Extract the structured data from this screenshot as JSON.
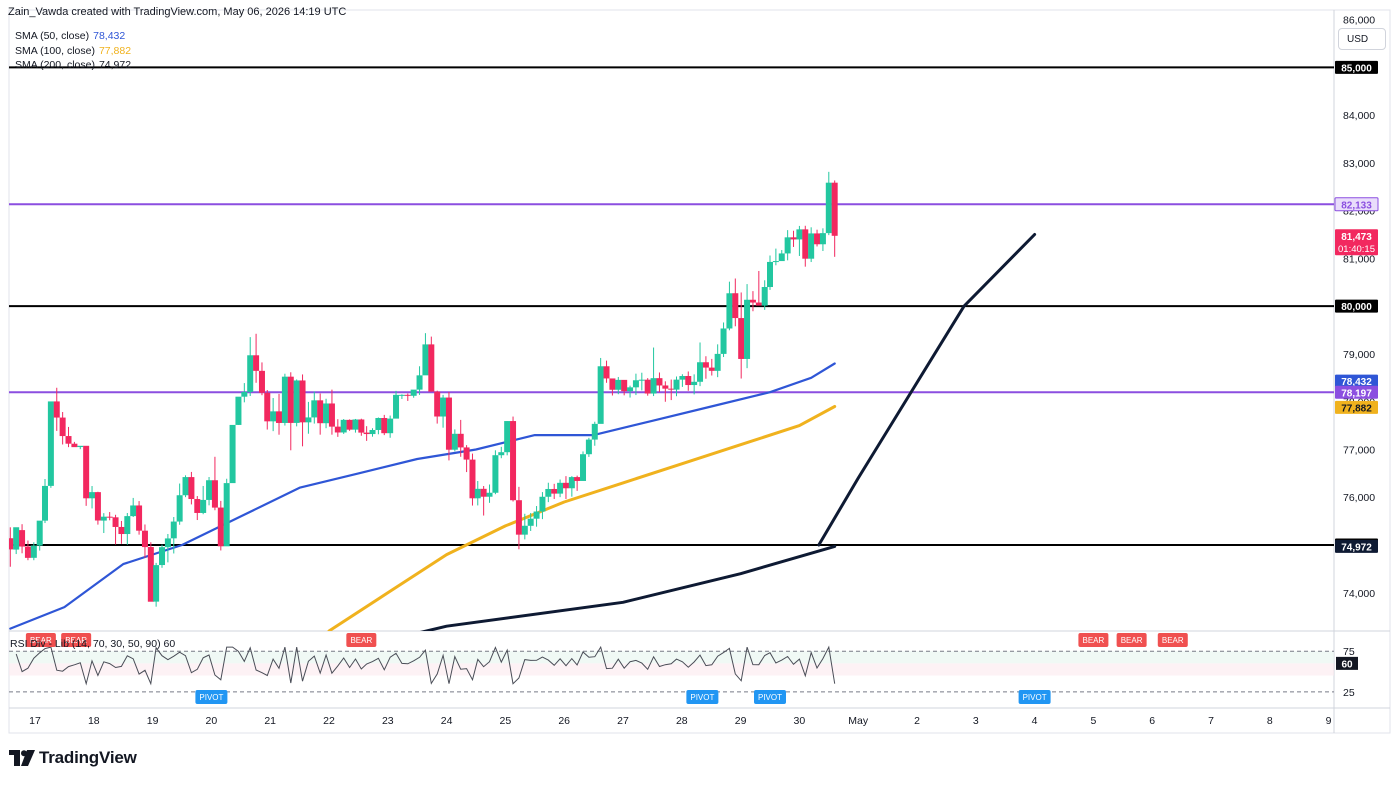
{
  "header": {
    "credit": "Zain_Vawda created with TradingView.com, May 06, 2026 14:19 UTC"
  },
  "currency": "USD",
  "sma_legend": [
    {
      "label": "SMA (50, close)",
      "value": "78,432",
      "color": "#2f56d6"
    },
    {
      "label": "SMA (100, close)",
      "value": "77,882",
      "color": "#f0b21e"
    },
    {
      "label": "SMA (200, close)",
      "value": "74,972",
      "color": "#131722"
    }
  ],
  "rsi_legend": "RSI Div - Lib (14, 70, 30, 50, 90) 60",
  "footer": {
    "brand": "TradingView"
  },
  "colors": {
    "up": "#22c7a0",
    "down": "#f2285f",
    "sma50": "#2f56d6",
    "sma100": "#f0b21e",
    "sma200": "#0e1a33",
    "purple": "#8b4fe0",
    "hline": "#000000"
  },
  "chart_data": {
    "type": "candlestick",
    "ylim": [
      73200,
      86200
    ],
    "y_ticks": [
      "74,000",
      "76,000",
      "77,000",
      "78,000",
      "79,000",
      "80,000",
      "81,000",
      "82,000",
      "83,000",
      "84,000",
      "85,000",
      "86,000"
    ],
    "x_ticks": [
      {
        "label": "17",
        "x": 0
      },
      {
        "label": "18",
        "x": 1
      },
      {
        "label": "19",
        "x": 2
      },
      {
        "label": "20",
        "x": 3
      },
      {
        "label": "21",
        "x": 4
      },
      {
        "label": "22",
        "x": 5
      },
      {
        "label": "23",
        "x": 6
      },
      {
        "label": "24",
        "x": 7
      },
      {
        "label": "25",
        "x": 8
      },
      {
        "label": "26",
        "x": 9
      },
      {
        "label": "27",
        "x": 10
      },
      {
        "label": "28",
        "x": 11
      },
      {
        "label": "29",
        "x": 12
      },
      {
        "label": "30",
        "x": 13
      },
      {
        "label": "May",
        "x": 14
      },
      {
        "label": "2",
        "x": 15
      },
      {
        "label": "3",
        "x": 16
      },
      {
        "label": "4",
        "x": 17
      },
      {
        "label": "5",
        "x": 18
      },
      {
        "label": "6",
        "x": 19
      },
      {
        "label": "7",
        "x": 20
      },
      {
        "label": "8",
        "x": 21
      },
      {
        "label": "9",
        "x": 22
      }
    ],
    "candles": [
      [
        -0.42,
        75142,
        75371,
        74545,
        74908
      ],
      [
        -0.32,
        74904,
        75328,
        74811,
        75372
      ],
      [
        -0.22,
        75312,
        75436,
        74827,
        74968
      ],
      [
        -0.12,
        74968,
        75094,
        74682,
        74731
      ],
      [
        -0.02,
        74732,
        75057,
        74682,
        74988
      ],
      [
        0.08,
        74988,
        75415,
        74884,
        75510
      ],
      [
        0.17,
        75510,
        76382,
        75460,
        76237
      ],
      [
        0.27,
        76238,
        77953,
        76197,
        78006
      ],
      [
        0.37,
        78006,
        78292,
        77389,
        77668
      ],
      [
        0.47,
        77668,
        77784,
        77105,
        77281
      ],
      [
        0.57,
        77281,
        77472,
        77049,
        77121
      ],
      [
        0.67,
        77121,
        77159,
        77065,
        77049
      ],
      [
        0.77,
        77051,
        77059,
        77006,
        77077
      ],
      [
        0.87,
        77077,
        77016,
        75820,
        75978
      ],
      [
        0.97,
        75978,
        76235,
        75766,
        76107
      ],
      [
        1.07,
        76107,
        76115,
        75427,
        75513
      ],
      [
        1.17,
        75511,
        75667,
        75251,
        75593
      ],
      [
        1.27,
        75593,
        75690,
        75518,
        75580
      ],
      [
        1.37,
        75580,
        75633,
        75012,
        75378
      ],
      [
        1.47,
        75378,
        75504,
        75025,
        75230
      ],
      [
        1.57,
        75230,
        75670,
        75006,
        75605
      ],
      [
        1.67,
        75605,
        75986,
        75586,
        75828
      ],
      [
        1.77,
        75828,
        75920,
        75217,
        75300
      ],
      [
        1.87,
        75300,
        75430,
        74734,
        74957
      ],
      [
        1.97,
        74958,
        75058,
        73838,
        73813
      ],
      [
        2.06,
        73815,
        74626,
        73709,
        74579
      ],
      [
        2.16,
        74581,
        75008,
        74523,
        74955
      ],
      [
        2.26,
        74955,
        75231,
        74637,
        75138
      ],
      [
        2.36,
        75140,
        75586,
        74823,
        75491
      ],
      [
        2.46,
        75491,
        76287,
        75424,
        76042
      ],
      [
        2.56,
        76042,
        76459,
        76002,
        76422
      ],
      [
        2.66,
        76422,
        76530,
        75850,
        75963
      ],
      [
        2.76,
        75963,
        76025,
        75523,
        75671
      ],
      [
        2.86,
        75671,
        76236,
        75645,
        75944
      ],
      [
        2.96,
        75944,
        76424,
        75831,
        76356
      ],
      [
        3.06,
        76356,
        76847,
        75728,
        75783
      ],
      [
        3.16,
        75784,
        75924,
        74886,
        74973
      ],
      [
        3.26,
        74973,
        76387,
        75080,
        76296
      ],
      [
        3.36,
        76296,
        77485,
        76304,
        77514
      ],
      [
        3.46,
        77514,
        78009,
        77515,
        78105
      ],
      [
        3.56,
        78105,
        78390,
        77987,
        78204
      ],
      [
        3.66,
        78204,
        79352,
        78119,
        78972
      ],
      [
        3.76,
        78972,
        79422,
        78396,
        78646
      ],
      [
        3.86,
        78646,
        78823,
        78136,
        78187
      ],
      [
        3.95,
        78187,
        78245,
        77417,
        77589
      ],
      [
        4.05,
        77589,
        78077,
        77384,
        77798
      ],
      [
        4.15,
        77798,
        78164,
        77309,
        77555
      ],
      [
        4.25,
        77555,
        78586,
        77501,
        78524
      ],
      [
        4.35,
        78524,
        78616,
        76983,
        77556
      ],
      [
        4.45,
        77556,
        78466,
        77484,
        78445
      ],
      [
        4.55,
        78445,
        78571,
        77066,
        77568
      ],
      [
        4.65,
        77568,
        77996,
        77330,
        77671
      ],
      [
        4.75,
        77671,
        78213,
        77542,
        78029
      ],
      [
        4.85,
        78029,
        78172,
        77310,
        77550
      ],
      [
        4.95,
        77550,
        78062,
        77445,
        77963
      ],
      [
        5.05,
        77963,
        78253,
        77310,
        77478
      ],
      [
        5.15,
        77478,
        77634,
        77264,
        77356
      ],
      [
        5.25,
        77356,
        77638,
        77325,
        77620
      ],
      [
        5.35,
        77620,
        77630,
        77391,
        77415
      ],
      [
        5.45,
        77415,
        77639,
        77353,
        77628
      ],
      [
        5.55,
        77628,
        77644,
        77287,
        77353
      ],
      [
        5.64,
        77353,
        77488,
        77180,
        77323
      ],
      [
        5.74,
        77323,
        77445,
        77268,
        77408
      ],
      [
        5.84,
        77408,
        77670,
        77318,
        77659
      ],
      [
        5.94,
        77659,
        77724,
        77301,
        77341
      ],
      [
        6.04,
        77341,
        77710,
        77245,
        77646
      ],
      [
        6.14,
        77646,
        78227,
        77661,
        78143
      ],
      [
        6.24,
        78143,
        78154,
        78057,
        78144
      ],
      [
        6.34,
        78144,
        78172,
        78016,
        78125
      ],
      [
        6.44,
        78124,
        78175,
        78083,
        78253
      ],
      [
        6.54,
        78253,
        78742,
        78143,
        78552
      ],
      [
        6.64,
        78552,
        79435,
        78567,
        79200
      ],
      [
        6.74,
        79200,
        79363,
        78210,
        78212
      ],
      [
        6.84,
        78212,
        78231,
        77542,
        77690
      ],
      [
        6.94,
        77690,
        78143,
        77456,
        78087
      ],
      [
        7.04,
        78087,
        78203,
        76771,
        76995
      ],
      [
        7.14,
        76995,
        77420,
        76962,
        77328
      ],
      [
        7.24,
        77328,
        77619,
        76847,
        77043
      ],
      [
        7.34,
        77043,
        77091,
        76527,
        76788
      ],
      [
        7.44,
        76788,
        76914,
        75826,
        75978
      ],
      [
        7.53,
        75978,
        76340,
        75829,
        76176
      ],
      [
        7.63,
        76176,
        76235,
        75617,
        76011
      ],
      [
        7.73,
        76011,
        76267,
        75883,
        76094
      ],
      [
        7.83,
        76094,
        76983,
        76064,
        76880
      ],
      [
        7.93,
        76880,
        77055,
        76817,
        76943
      ],
      [
        8.03,
        76943,
        77593,
        76878,
        77595
      ],
      [
        8.13,
        77595,
        77689,
        75911,
        75938
      ],
      [
        8.23,
        75938,
        76218,
        74911,
        75217
      ],
      [
        8.33,
        75217,
        75654,
        75118,
        75403
      ],
      [
        8.43,
        75402,
        75671,
        75294,
        75551
      ],
      [
        8.53,
        75551,
        75816,
        75384,
        75701
      ],
      [
        8.63,
        75701,
        76108,
        75542,
        76010
      ],
      [
        8.73,
        76010,
        76304,
        75898,
        76173
      ],
      [
        8.83,
        76173,
        76281,
        75964,
        76076
      ],
      [
        8.93,
        76076,
        76371,
        76002,
        76302
      ],
      [
        9.03,
        76302,
        76442,
        75964,
        76188
      ],
      [
        9.13,
        76188,
        76442,
        76012,
        76422
      ],
      [
        9.22,
        76422,
        76452,
        76133,
        76341
      ],
      [
        9.32,
        76341,
        76959,
        76349,
        76901
      ],
      [
        9.42,
        76901,
        77244,
        76844,
        77207
      ],
      [
        9.52,
        77207,
        77581,
        77078,
        77536
      ],
      [
        9.62,
        77536,
        78916,
        77568,
        78742
      ],
      [
        9.72,
        78742,
        78860,
        78396,
        78487
      ],
      [
        9.82,
        78487,
        78482,
        78130,
        78250
      ],
      [
        9.92,
        78250,
        78518,
        78157,
        78457
      ],
      [
        10.02,
        78457,
        78453,
        78134,
        78220
      ],
      [
        10.12,
        78220,
        78336,
        78087,
        78301
      ],
      [
        10.22,
        78301,
        78587,
        78139,
        78449
      ],
      [
        10.32,
        78449,
        78607,
        78236,
        78461
      ],
      [
        10.42,
        78461,
        78494,
        78126,
        78171
      ],
      [
        10.52,
        78171,
        79134,
        78118,
        78493
      ],
      [
        10.62,
        78493,
        78612,
        78202,
        78340
      ],
      [
        10.72,
        78340,
        78427,
        77999,
        78273
      ],
      [
        10.82,
        78273,
        78464,
        78034,
        78253
      ],
      [
        10.91,
        78253,
        78528,
        78115,
        78462
      ],
      [
        11.01,
        78462,
        78575,
        78310,
        78538
      ],
      [
        11.11,
        78538,
        78633,
        78229,
        78349
      ],
      [
        11.21,
        78349,
        78573,
        78153,
        78417
      ],
      [
        11.31,
        78417,
        79240,
        78326,
        78826
      ],
      [
        11.41,
        78826,
        78952,
        78481,
        78714
      ],
      [
        11.51,
        78714,
        78896,
        78548,
        78646
      ],
      [
        11.61,
        78646,
        79201,
        78514,
        79001
      ],
      [
        11.71,
        79001,
        79659,
        78935,
        79533
      ],
      [
        11.81,
        79533,
        80513,
        79495,
        80270
      ],
      [
        11.91,
        80271,
        80579,
        79579,
        79751
      ],
      [
        12.01,
        79751,
        80287,
        78485,
        78895
      ],
      [
        12.11,
        78895,
        80462,
        78702,
        80134
      ],
      [
        12.21,
        80134,
        80315,
        79894,
        80076
      ],
      [
        12.31,
        80076,
        80737,
        80053,
        80012
      ],
      [
        12.41,
        80012,
        80542,
        79923,
        80401
      ],
      [
        12.5,
        80401,
        81062,
        80341,
        80926
      ],
      [
        12.6,
        80926,
        81205,
        80856,
        80944
      ],
      [
        12.7,
        80944,
        81175,
        80962,
        81104
      ],
      [
        12.8,
        81104,
        81592,
        80960,
        81441
      ],
      [
        12.9,
        81441,
        81579,
        81240,
        81397
      ],
      [
        13.0,
        81397,
        81680,
        81051,
        81608
      ],
      [
        13.1,
        81608,
        81683,
        80827,
        80994
      ],
      [
        13.2,
        80994,
        81651,
        80924,
        81523
      ],
      [
        13.3,
        81523,
        81601,
        81250,
        81296
      ],
      [
        13.4,
        81296,
        81630,
        81155,
        81529
      ],
      [
        13.5,
        81529,
        82812,
        81487,
        82585
      ],
      [
        13.6,
        82585,
        82632,
        81033,
        81473
      ]
    ],
    "sma50": [
      [
        -0.42,
        73250
      ],
      [
        0.5,
        73700
      ],
      [
        1.5,
        74600
      ],
      [
        2.5,
        75000
      ],
      [
        3.5,
        75600
      ],
      [
        4.5,
        76200
      ],
      [
        5.5,
        76500
      ],
      [
        6.5,
        76800
      ],
      [
        7.5,
        77000
      ],
      [
        8.5,
        77300
      ],
      [
        9.5,
        77300
      ],
      [
        10.5,
        77600
      ],
      [
        11.5,
        77900
      ],
      [
        12.5,
        78200
      ],
      [
        13.2,
        78500
      ],
      [
        13.6,
        78800
      ]
    ],
    "sma100": [
      [
        5,
        73200
      ],
      [
        6,
        74000
      ],
      [
        7,
        74800
      ],
      [
        8,
        75400
      ],
      [
        9,
        75900
      ],
      [
        10,
        76300
      ],
      [
        11,
        76700
      ],
      [
        12,
        77100
      ],
      [
        13,
        77500
      ],
      [
        13.6,
        77900
      ]
    ],
    "sma200": [
      [
        4.6,
        72600
      ],
      [
        7,
        73300
      ],
      [
        10,
        73800
      ],
      [
        12,
        74400
      ],
      [
        13.6,
        74972
      ]
    ],
    "trendline": [
      [
        13.33,
        75000
      ],
      [
        14,
        76400
      ],
      [
        15.8,
        80000
      ],
      [
        17.0,
        81500
      ]
    ],
    "price_lines": [
      {
        "value": 85000,
        "label": "85,000",
        "color": "#000000"
      },
      {
        "value": 82133,
        "label": "82,133",
        "color": "#8b4fe0"
      },
      {
        "value": 80000,
        "label": "80,000",
        "color": "#000000"
      },
      {
        "value": 78197,
        "label": "78,197",
        "color": "#8b4fe0"
      },
      {
        "value": 75000,
        "label": "75,000",
        "color": "#000000"
      }
    ],
    "price_labels": [
      {
        "value": 81473,
        "label": "81,473",
        "sub": "01:40:15",
        "bg": "#f2285f",
        "fg": "#ffffff"
      },
      {
        "value": 78432,
        "label": "78,432",
        "bg": "#2f56d6",
        "fg": "#ffffff"
      },
      {
        "value": 78197,
        "label": "78,197",
        "bg": "#8b4fe0",
        "fg": "#ffffff"
      },
      {
        "value": 77882,
        "label": "77,882",
        "bg": "#f0b21e",
        "fg": "#131722"
      },
      {
        "value": 74972,
        "label": "74,972",
        "bg": "#0e1a33",
        "fg": "#ffffff"
      }
    ],
    "rsi": {
      "levels": [
        75,
        60,
        25
      ],
      "level_labels": [
        "75",
        "25"
      ],
      "current_label": "60",
      "markers": [
        {
          "type": "BEAR",
          "x": 0.1
        },
        {
          "type": "BEAR",
          "x": 0.7
        },
        {
          "type": "PIVOT",
          "x": 3.0
        },
        {
          "type": "BEAR",
          "x": 5.55
        },
        {
          "type": "PIVOT",
          "x": 11.35
        },
        {
          "type": "PIVOT",
          "x": 12.5
        },
        {
          "type": "PIVOT",
          "x": 17.0
        },
        {
          "type": "BEAR",
          "x": 18.0
        },
        {
          "type": "BEAR",
          "x": 18.65
        },
        {
          "type": "BEAR",
          "x": 19.35
        }
      ]
    }
  }
}
